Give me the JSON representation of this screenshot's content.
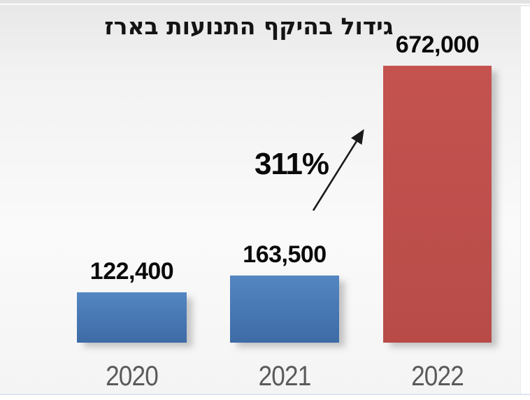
{
  "chart_data": {
    "type": "bar",
    "title": "גידול בהיקף התנועות בארז",
    "categories": [
      "2020",
      "2021",
      "2022"
    ],
    "values": [
      122400,
      163500,
      672000
    ],
    "value_labels": [
      "122,400",
      "163,500",
      "672,000"
    ],
    "annotation": {
      "text": "311%"
    },
    "bar_colors": [
      "#4878B3",
      "#4878B3",
      "#BE4F4C"
    ],
    "bar_gradients": [
      [
        "#5486C2",
        "#3D6BA6"
      ],
      [
        "#5486C2",
        "#3D6BA6"
      ],
      [
        "#C4534F",
        "#B84B48"
      ]
    ],
    "value_label_color": "#0a0a0a",
    "category_label_color": "#5a5a5a",
    "title_color": "#141414",
    "background_color": "#f2f2f2",
    "orientation": "vertical",
    "ylim": [
      0,
      672000
    ],
    "grid": false,
    "legend": false
  }
}
